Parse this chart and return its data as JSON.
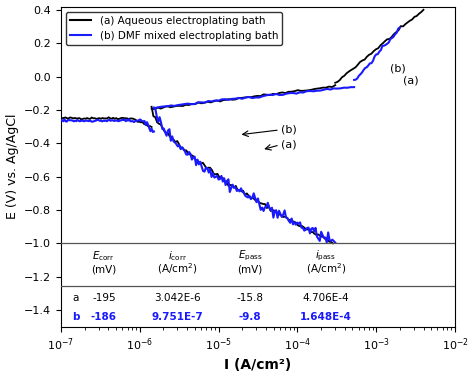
{
  "xlabel": "I (A/cm²)",
  "ylabel": "E (V) vs. Ag/AgCl",
  "ylim": [
    -1.5,
    0.42
  ],
  "yticks": [
    0.4,
    0.2,
    0.0,
    -0.2,
    -0.4,
    -0.6,
    -0.8,
    -1.0,
    -1.2,
    -1.4
  ],
  "color_a": "#000000",
  "color_b": "#1a1aff",
  "legend_a": "(a) Aqueous electroplating bath",
  "legend_b": "(b) DMF mixed electroplating bath",
  "ecorr_a": "-195",
  "icorr_a": "3.042E-6",
  "epass_a": "-15.8",
  "ipass_a": "4.706E-4",
  "ecorr_b": "-186",
  "icorr_b": "9.751E-7",
  "epass_b": "-9.8",
  "ipass_b": "1.648E-4"
}
